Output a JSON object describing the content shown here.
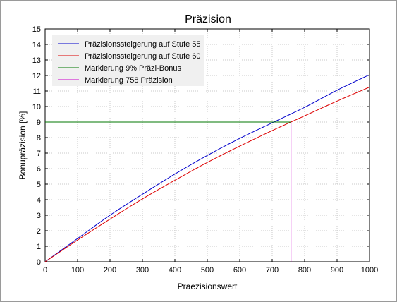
{
  "chart_data": {
    "type": "line",
    "title": "Präzision",
    "xlabel": "Praezisionswert",
    "ylabel": "Bonupräzision [%]",
    "xlim": [
      0,
      1000
    ],
    "ylim": [
      0,
      15
    ],
    "xticks": [
      0,
      100,
      200,
      300,
      400,
      500,
      600,
      700,
      800,
      900,
      1000
    ],
    "yticks": [
      0,
      1,
      2,
      3,
      4,
      5,
      6,
      7,
      8,
      9,
      10,
      11,
      12,
      13,
      14,
      15
    ],
    "grid": true,
    "legend_position": "top-left",
    "series": [
      {
        "name": "Präzisionssteigerung auf Stufe 55",
        "color": "#0000cc",
        "x": [
          0,
          100,
          200,
          300,
          400,
          500,
          600,
          700,
          800,
          900,
          1000
        ],
        "y": [
          0,
          1.5,
          3.0,
          4.35,
          5.65,
          6.85,
          7.95,
          8.95,
          9.95,
          11.05,
          12.05
        ]
      },
      {
        "name": "Präzisionssteigerung auf Stufe 60",
        "color": "#dd0000",
        "x": [
          0,
          100,
          200,
          300,
          400,
          500,
          600,
          700,
          800,
          900,
          1000
        ],
        "y": [
          0,
          1.4,
          2.75,
          4.05,
          5.25,
          6.4,
          7.45,
          8.45,
          9.4,
          10.35,
          11.25
        ]
      },
      {
        "name": "Markierung 9% Präzi-Bonus",
        "color": "#007700",
        "x": [
          0,
          758
        ],
        "y": [
          9,
          9
        ]
      },
      {
        "name": "Markierung 758 Präzision",
        "color": "#cc00cc",
        "x": [
          758,
          758
        ],
        "y": [
          0,
          9
        ]
      }
    ]
  }
}
